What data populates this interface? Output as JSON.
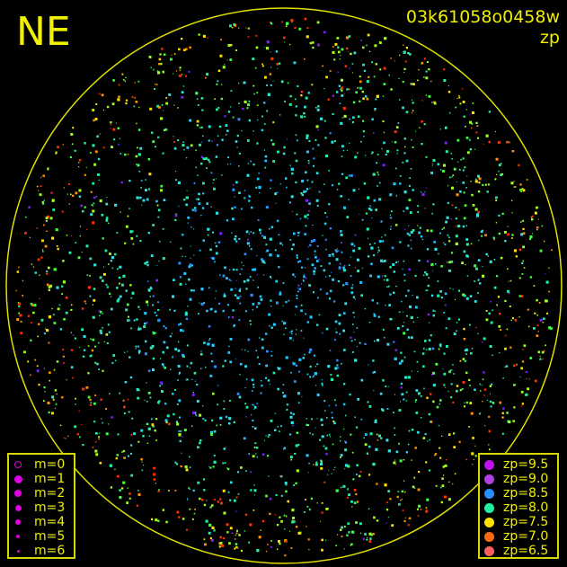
{
  "direction_label": "NE",
  "image_id": "03k61058o0458w",
  "mode_label": "zp",
  "colors": {
    "background": "#000000",
    "horizon_circle": "#e0e000",
    "text": "#f0f000",
    "legend_marker": "#e000e0"
  },
  "magnitude_legend": [
    {
      "label": "m=0",
      "size": 4,
      "hollow": true
    },
    {
      "label": "m=1",
      "size": 4.5
    },
    {
      "label": "m=2",
      "size": 4
    },
    {
      "label": "m=3",
      "size": 3.5
    },
    {
      "label": "m=4",
      "size": 2.8
    },
    {
      "label": "m=5",
      "size": 2.3
    },
    {
      "label": "m=6",
      "size": 1.5
    }
  ],
  "zp_legend": [
    {
      "label": "zp=9.5",
      "color": "#c010f0"
    },
    {
      "label": "zp=9.0",
      "color": "#b040e0"
    },
    {
      "label": "zp=8.5",
      "color": "#2890ff"
    },
    {
      "label": "zp=8.0",
      "color": "#20f0a0"
    },
    {
      "label": "zp=7.5",
      "color": "#ffe000"
    },
    {
      "label": "zp=7.0",
      "color": "#ff6a10"
    },
    {
      "label": "zp=6.5",
      "color": "#ff6060"
    }
  ]
}
